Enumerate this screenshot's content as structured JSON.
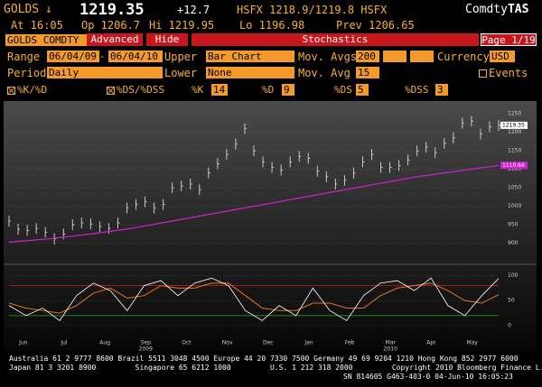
{
  "header": {
    "ticker": "GOLDS",
    "arrow": "↓",
    "price": "1219.35",
    "change": "+12.7",
    "quote": "HSFX 1218.9/1219.8 HSFX",
    "brand_a": "Comdty",
    "brand_b": "TAS",
    "time": "At 16:05",
    "open": "Op 1206.7",
    "high": "Hi 1219.95",
    "low": "Lo 1196.98",
    "prev": "Prev 1206.65"
  },
  "toolbar": {
    "security": "GOLDS COMDTY",
    "advanced": "Advanced",
    "hide": "Hide",
    "title": "Stochastics",
    "page": "Page 1/19"
  },
  "settings": {
    "range_label": "Range",
    "range_from": "06/04/09",
    "range_sep": "-",
    "range_to": "06/04/10",
    "upper_label": "Upper",
    "upper": "Bar Chart",
    "movavgs_label": "Mov. Avgs",
    "movavgs": "200",
    "currency_label": "Currency",
    "currency": "USD",
    "period_label": "Period",
    "period": "Daily",
    "lower_label": "Lower",
    "lower": "None",
    "movavg_label": "Mov. Avg",
    "movavg": "15",
    "events": "Events",
    "kd": "%K/%D",
    "dsdss": "%DS/%DSS",
    "k_label": "%K",
    "k": "14",
    "d_label": "%D",
    "d": "9",
    "ds_label": "%DS",
    "ds": "5",
    "dss_label": "%DSS",
    "dss": "3"
  },
  "chart": {
    "type": "bar",
    "months": [
      "Jun",
      "Jul",
      "Aug",
      "Sep",
      "Oct",
      "Nov",
      "Dec",
      "Jan",
      "Feb",
      "Mar",
      "Apr",
      "May"
    ],
    "years": [
      {
        "month": 3,
        "label": "2009"
      },
      {
        "month": 9,
        "label": "2010"
      }
    ],
    "price": {
      "values": [
        960,
        938,
        935,
        940,
        930,
        912,
        925,
        950,
        955,
        952,
        945,
        940,
        955,
        995,
        1005,
        1012,
        995,
        1005,
        1050,
        1055,
        1060,
        1045,
        1090,
        1115,
        1140,
        1168,
        1210,
        1150,
        1120,
        1105,
        1098,
        1120,
        1135,
        1130,
        1095,
        1080,
        1060,
        1070,
        1090,
        1120,
        1140,
        1105,
        1105,
        1110,
        1125,
        1150,
        1160,
        1145,
        1170,
        1185,
        1225,
        1230,
        1195,
        1215,
        1219
      ],
      "color": "#d8d8d8",
      "last_label": "1219.35"
    },
    "ma": {
      "values": [
        903,
        912,
        925,
        940,
        960,
        980,
        1000,
        1020,
        1040,
        1060,
        1080,
        1095,
        1110.64
      ],
      "color": "#d21fd2",
      "last_label": "1110.64"
    },
    "ylim": [
      860,
      1270
    ],
    "yticks": [
      900,
      950,
      1000,
      1050,
      1100,
      1150,
      1200,
      1250
    ],
    "stoch": {
      "k": {
        "values": [
          40,
          20,
          35,
          10,
          60,
          85,
          70,
          30,
          80,
          90,
          60,
          85,
          95,
          80,
          30,
          10,
          40,
          20,
          75,
          30,
          10,
          60,
          85,
          90,
          70,
          95,
          40,
          20,
          60,
          94.34
        ],
        "color": "#ffffff"
      },
      "d": {
        "values": [
          45,
          35,
          30,
          25,
          40,
          65,
          75,
          55,
          60,
          80,
          75,
          75,
          85,
          85,
          60,
          35,
          30,
          30,
          45,
          45,
          35,
          35,
          60,
          75,
          80,
          85,
          70,
          50,
          45,
          61.79
        ],
        "color": "#e8741c"
      },
      "ylim": [
        -20,
        110
      ],
      "yticks": [
        0,
        50,
        100
      ],
      "upper_band": 80,
      "lower_band": 20
    }
  },
  "footer": {
    "lines": [
      "Australia 61 2 9777 8600 Brazil 5511 3048 4500 Europe 44 20 7330 7500 Germany 49 69 9204 1210 Hong Kong 852 2977 6000",
      "Japan 81 3 3201 8900         Singapore 65 6212 1000         U.S. 1 212 318 2000         Copyright 2010 Bloomberg Finance L.P.",
      "SN 814605 G463-403-0 04-Jun-10 16:05:23"
    ]
  }
}
